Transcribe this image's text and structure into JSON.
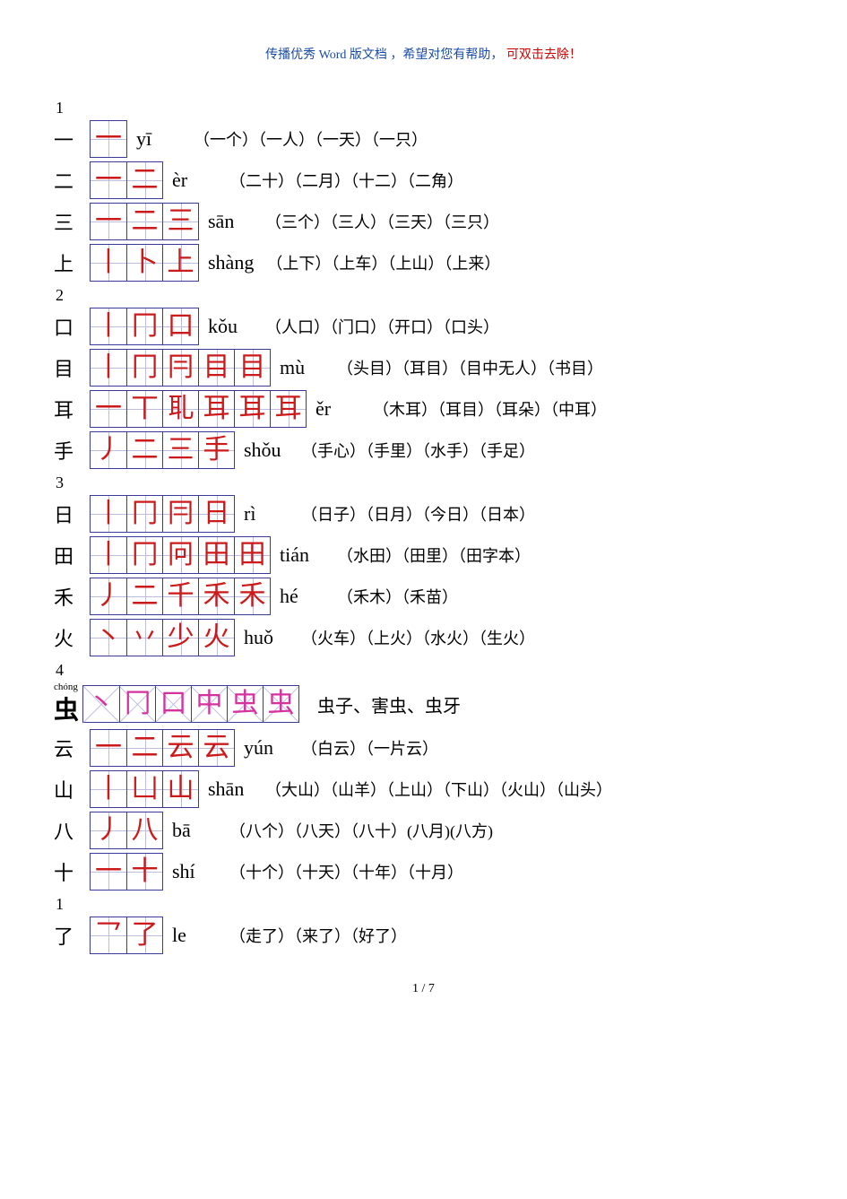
{
  "banner": {
    "prefix": "传播优秀",
    "word": "Word",
    "mid": "版文档 ，希望对您有帮助，",
    "red": "可双击去除！"
  },
  "colors": {
    "stroke_red": "#cc1a1a",
    "stroke_magenta": "#d6329f",
    "grid_border": "#3a3a9a",
    "grid_line": "#bdbde0"
  },
  "footer": "1 / 7",
  "sections": [
    {
      "num": "1",
      "rows": [
        {
          "char": "一",
          "strokes": [
            "一"
          ],
          "pinyin": "yī",
          "grid": "plus",
          "color": "red",
          "words": "（一个）（一人）（一天）（一只）"
        },
        {
          "char": "二",
          "strokes": [
            "一",
            "二"
          ],
          "pinyin": "èr",
          "grid": "plus",
          "color": "red",
          "words": "（二十）（二月）（十二）（二角）"
        },
        {
          "char": "三",
          "strokes": [
            "一",
            "二",
            "三"
          ],
          "pinyin": "sān",
          "grid": "plus",
          "color": "red",
          "words": "（三个）（三人）（三天）（三只）"
        },
        {
          "char": "上",
          "strokes": [
            "丨",
            "卜",
            "上"
          ],
          "pinyin": "shàng",
          "grid": "plus",
          "color": "red",
          "words": "（上下）（上车）（上山）（上来）"
        }
      ]
    },
    {
      "num": "2",
      "rows": [
        {
          "char": "口",
          "strokes": [
            "丨",
            "冂",
            "口"
          ],
          "pinyin": "kǒu",
          "grid": "plus",
          "color": "red",
          "words": "（人口）（门口）（开口）（口头）"
        },
        {
          "char": "目",
          "strokes": [
            "丨",
            "冂",
            "冃",
            "目",
            "目"
          ],
          "pinyin": "mù",
          "grid": "plus",
          "color": "red",
          "words": "（头目）（耳目）（目中无人）（书目）"
        },
        {
          "char": "耳",
          "strokes": [
            "一",
            "丅",
            "耴",
            "耳",
            "耳",
            "耳"
          ],
          "pinyin": "ěr",
          "grid": "plus",
          "color": "red",
          "words": "（木耳）（耳目）（耳朵）（中耳）"
        },
        {
          "char": "手",
          "strokes": [
            "丿",
            "二",
            "三",
            "手"
          ],
          "pinyin": "shǒu",
          "grid": "plus",
          "color": "red",
          "words": "（手心）（手里）（水手）（手足）"
        }
      ]
    },
    {
      "num": "3",
      "rows": [
        {
          "char": "日",
          "strokes": [
            "丨",
            "冂",
            "冃",
            "日"
          ],
          "pinyin": "rì",
          "grid": "plus",
          "color": "red",
          "words": "（日子）（日月）（今日）（日本）"
        },
        {
          "char": "田",
          "strokes": [
            "丨",
            "冂",
            "冋",
            "田",
            "田"
          ],
          "pinyin": "tián",
          "grid": "plus",
          "color": "red",
          "words": "（水田）（田里）（田字本）"
        },
        {
          "char": "禾",
          "strokes": [
            "丿",
            "二",
            "千",
            "禾",
            "禾"
          ],
          "pinyin": "hé",
          "grid": "plus",
          "color": "red",
          "words": "（禾木）（禾苗）"
        },
        {
          "char": "火",
          "strokes": [
            "丶",
            "丷",
            "少",
            "火"
          ],
          "pinyin": "huǒ",
          "grid": "plus",
          "color": "red",
          "words": "（火车）（上火）（水火）（生火）"
        }
      ]
    },
    {
      "num": "4",
      "rows": [
        {
          "char": "虫",
          "head_pinyin": "chóng",
          "head_big": true,
          "strokes": [
            "丶",
            "冂",
            "口",
            "中",
            "虫",
            "虫"
          ],
          "pinyin": "",
          "grid": "x",
          "color": "magenta",
          "words_plain": "虫子、害虫、虫牙"
        },
        {
          "char": "云",
          "strokes": [
            "一",
            "二",
            "云",
            "云"
          ],
          "pinyin": "yún",
          "grid": "plus",
          "color": "red",
          "words": "（白云）（一片云）"
        },
        {
          "char": "山",
          "strokes": [
            "丨",
            "凵",
            "山"
          ],
          "pinyin": "shān",
          "grid": "plus",
          "color": "red",
          "words": "（大山）（山羊）（上山）（下山）（火山）（山头）"
        },
        {
          "char": "八",
          "strokes": [
            "丿",
            "八"
          ],
          "pinyin": "bā",
          "grid": "plus",
          "color": "red",
          "words": "（八个）（八天）（八十）(八月)(八方)"
        },
        {
          "char": "十",
          "strokes": [
            "一",
            "十"
          ],
          "pinyin": "shí",
          "grid": "plus",
          "color": "red",
          "words": "（十个）（十天）（十年）（十月）"
        }
      ]
    },
    {
      "num": "1",
      "rows": [
        {
          "char": "了",
          "strokes": [
            "乛",
            "了"
          ],
          "pinyin": "le",
          "grid": "plus",
          "color": "red",
          "words": "（走了）（来了）（好了）"
        }
      ]
    }
  ]
}
